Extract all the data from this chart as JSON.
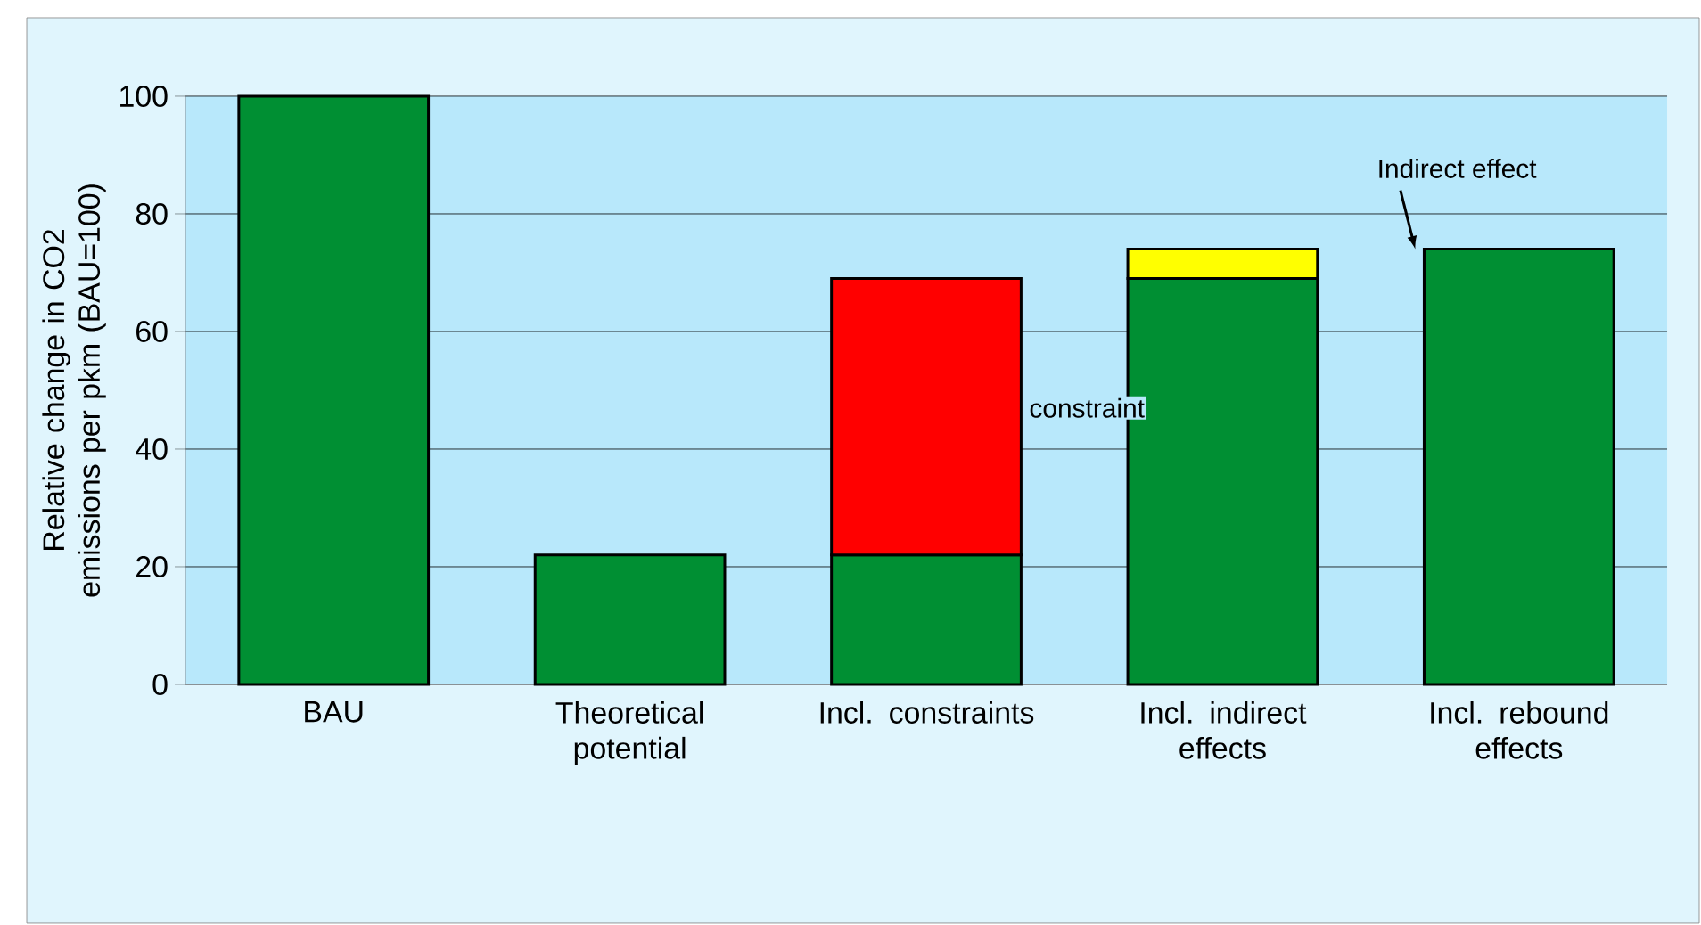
{
  "chart_data": {
    "type": "bar",
    "stacked": true,
    "ylabel": "Relative change in CO2 emissions per pkm (BAU=100)",
    "categories": [
      "BAU",
      "Theoretical potential",
      "Incl. constraints",
      "Incl. indirect effects",
      "Incl. rebound effects"
    ],
    "series": [
      {
        "color": "#008f33",
        "values": [
          100,
          22,
          22,
          69,
          74
        ]
      },
      {
        "color": "#ff0000",
        "values": [
          null,
          null,
          47,
          null,
          null
        ]
      },
      {
        "color": "#ffff00",
        "values": [
          null,
          null,
          null,
          5,
          null
        ]
      }
    ],
    "ylim": [
      0,
      100
    ],
    "yticks": [
      0,
      20,
      40,
      60,
      80,
      100
    ],
    "grid": "y",
    "annotations": [
      "constraint",
      {
        "text": "Indirect effect",
        "x": "Incl. rebound effects",
        "y": 74
      }
    ]
  }
}
